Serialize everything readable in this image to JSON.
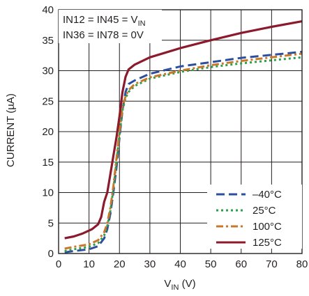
{
  "chart_data": {
    "type": "line",
    "xlabel": {
      "main": "V",
      "sub": "IN",
      "unit": " (V)"
    },
    "ylabel": "CURRENT (µA)",
    "xlim": [
      0,
      80
    ],
    "ylim": [
      0,
      40
    ],
    "xticks": [
      0,
      10,
      20,
      30,
      40,
      50,
      60,
      70,
      80
    ],
    "yticks": [
      0,
      5,
      10,
      15,
      20,
      25,
      30,
      35,
      40
    ],
    "grid": true,
    "legend_position": "bottom-right",
    "annotations": [
      {
        "main": "IN12 = IN45 = V",
        "sub": "IN"
      },
      {
        "main": "IN36 = IN78 = 0V",
        "sub": ""
      }
    ],
    "series": [
      {
        "name": "–40°C",
        "color": "#2b4f9e",
        "dash": "12,6",
        "points": [
          [
            2,
            0.2
          ],
          [
            5,
            0.4
          ],
          [
            10,
            0.7
          ],
          [
            13,
            1.2
          ],
          [
            15,
            2.5
          ],
          [
            16,
            4
          ],
          [
            17,
            6.5
          ],
          [
            18,
            10
          ],
          [
            19,
            14
          ],
          [
            20,
            19
          ],
          [
            21,
            23.5
          ],
          [
            22,
            26.5
          ],
          [
            23,
            27.8
          ],
          [
            25,
            28.4
          ],
          [
            30,
            29.5
          ],
          [
            40,
            30.7
          ],
          [
            50,
            31.4
          ],
          [
            60,
            32.1
          ],
          [
            70,
            32.6
          ],
          [
            80,
            33.1
          ]
        ]
      },
      {
        "name": "25°C",
        "color": "#2e9e48",
        "dash": "3,4",
        "points": [
          [
            2,
            0.4
          ],
          [
            5,
            0.7
          ],
          [
            10,
            1.1
          ],
          [
            13,
            1.7
          ],
          [
            15,
            3
          ],
          [
            16,
            4.5
          ],
          [
            17,
            7
          ],
          [
            18,
            10.5
          ],
          [
            19,
            15
          ],
          [
            20,
            19.5
          ],
          [
            21,
            23.5
          ],
          [
            22,
            25.5
          ],
          [
            23,
            26.5
          ],
          [
            25,
            27.5
          ],
          [
            30,
            28.7
          ],
          [
            40,
            29.8
          ],
          [
            50,
            30.6
          ],
          [
            60,
            31.2
          ],
          [
            70,
            31.7
          ],
          [
            80,
            32.2
          ]
        ]
      },
      {
        "name": "100°C",
        "color": "#c8782a",
        "dash": "10,4,3,4",
        "points": [
          [
            2,
            0.8
          ],
          [
            5,
            1.1
          ],
          [
            10,
            1.5
          ],
          [
            13,
            2.2
          ],
          [
            15,
            3.5
          ],
          [
            16,
            5
          ],
          [
            17,
            7.5
          ],
          [
            18,
            11
          ],
          [
            19,
            15.5
          ],
          [
            20,
            20
          ],
          [
            21,
            24
          ],
          [
            22,
            25.8
          ],
          [
            23,
            26.8
          ],
          [
            25,
            27.8
          ],
          [
            30,
            28.9
          ],
          [
            40,
            30
          ],
          [
            50,
            30.9
          ],
          [
            60,
            31.6
          ],
          [
            70,
            32.2
          ],
          [
            80,
            32.8
          ]
        ]
      },
      {
        "name": "125°C",
        "color": "#8b1a2c",
        "dash": "",
        "points": [
          [
            2,
            2.5
          ],
          [
            5,
            2.8
          ],
          [
            8,
            3.3
          ],
          [
            11,
            4
          ],
          [
            13,
            4.8
          ],
          [
            14,
            6
          ],
          [
            15,
            8.5
          ],
          [
            16,
            10
          ],
          [
            17,
            13
          ],
          [
            18,
            16
          ],
          [
            19,
            19
          ],
          [
            20,
            22.5
          ],
          [
            21,
            26.5
          ],
          [
            22,
            29
          ],
          [
            23,
            30.2
          ],
          [
            25,
            31
          ],
          [
            30,
            32.2
          ],
          [
            40,
            33.7
          ],
          [
            50,
            35
          ],
          [
            60,
            36.2
          ],
          [
            70,
            37.2
          ],
          [
            80,
            38.1
          ]
        ]
      }
    ]
  }
}
